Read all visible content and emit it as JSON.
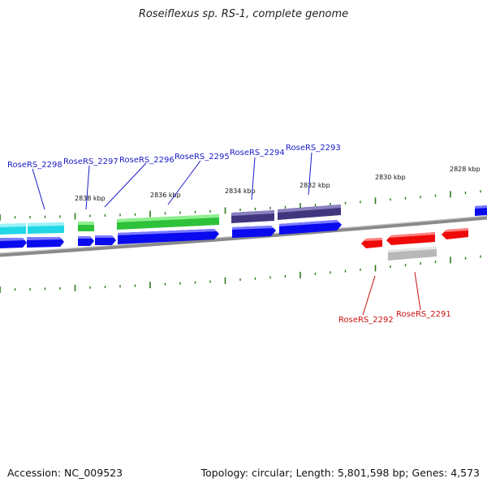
{
  "title": "Roseiflexus sp. RS-1, complete genome",
  "footer": {
    "accession": "Accession: NC_009523",
    "topology": "Topology: circular; Length: 5,801,598 bp; Genes: 4,573"
  },
  "colors": {
    "forward_cds": "#0a0aee",
    "cyan_gene": "#21d7e6",
    "green_gene": "#2ec23a",
    "purple_gene": "#41367e",
    "reverse_cds": "#ef0a0a",
    "gray_gene": "#b8b8b8",
    "label_blue": "#1a1ac8",
    "label_red": "#cc1111",
    "backbone": "#8a8a8a",
    "tick": "#2a7a1a"
  },
  "kbp_labels": [
    "2838 kbp",
    "2836 kbp",
    "2834 kbp",
    "2832 kbp",
    "2830 kbp",
    "2828 kbp"
  ],
  "gene_labels_forward": [
    "RoseRS_2298",
    "RoseRS_2297",
    "RoseRS_2296",
    "RoseRS_2295",
    "RoseRS_2294",
    "RoseRS_2293"
  ],
  "gene_labels_reverse": [
    "RoseRS_2292",
    "RoseRS_2291"
  ]
}
